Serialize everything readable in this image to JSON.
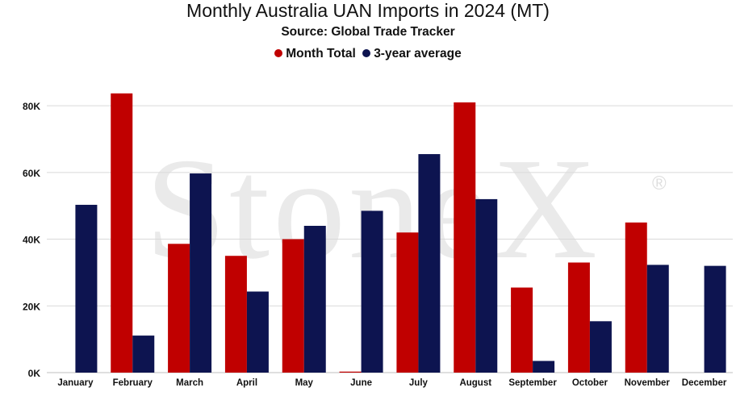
{
  "chart_data": {
    "type": "bar",
    "title": "Monthly Australia UAN Imports in 2024 (MT)",
    "subtitle": "Source: Global Trade Tracker",
    "categories": [
      "January",
      "February",
      "March",
      "April",
      "May",
      "June",
      "July",
      "August",
      "September",
      "October",
      "November",
      "December"
    ],
    "series": [
      {
        "name": "Month Total",
        "color": "#C00000",
        "values": [
          0,
          83700,
          38600,
          35000,
          40000,
          300,
          42000,
          81000,
          25500,
          33000,
          45000,
          0
        ]
      },
      {
        "name": "3-year average",
        "color": "#0D1450",
        "values": [
          50300,
          11100,
          59700,
          24300,
          44000,
          48500,
          65500,
          52000,
          3500,
          15400,
          32300,
          32000
        ]
      }
    ],
    "ylim": [
      0,
      88000
    ],
    "yticks": [
      0,
      20000,
      40000,
      60000,
      80000
    ],
    "ytick_labels": [
      "0K",
      "20K",
      "40K",
      "60K",
      "80K"
    ],
    "grid": true,
    "legend_position": "top-center",
    "watermark": "StoneX®"
  }
}
